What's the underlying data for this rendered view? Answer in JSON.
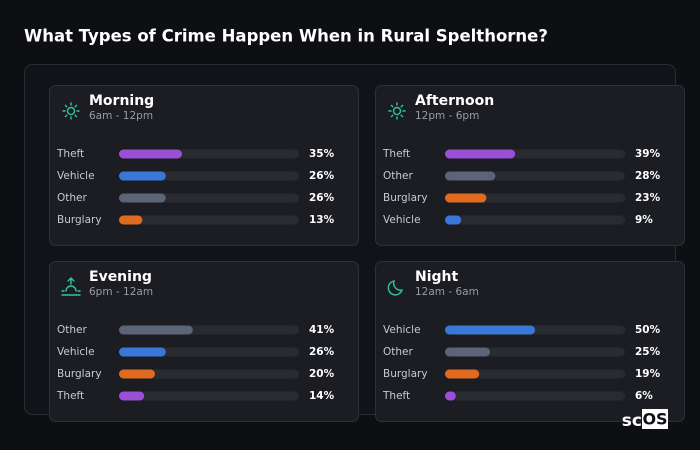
{
  "title": "What Types of Crime Happen When in Rural Spelthorne?",
  "logo": [
    "sc",
    "OS"
  ],
  "chart_data": [
    {
      "type": "bar",
      "orientation": "horizontal",
      "title": "Morning",
      "subtitle": "6am - 12pm",
      "categories": [
        "Theft",
        "Vehicle",
        "Other",
        "Burglary"
      ],
      "values": [
        35,
        26,
        26,
        13
      ],
      "value_labels": [
        "35%",
        "26%",
        "26%",
        "13%"
      ],
      "colors": [
        "#9b4fd6",
        "#3a78d8",
        "#5c6478",
        "#e06a1f"
      ],
      "xlim": [
        0,
        100
      ]
    },
    {
      "type": "bar",
      "orientation": "horizontal",
      "title": "Afternoon",
      "subtitle": "12pm - 6pm",
      "categories": [
        "Theft",
        "Other",
        "Burglary",
        "Vehicle"
      ],
      "values": [
        39,
        28,
        23,
        9
      ],
      "value_labels": [
        "39%",
        "28%",
        "23%",
        "9%"
      ],
      "colors": [
        "#9b4fd6",
        "#5c6478",
        "#e06a1f",
        "#3a78d8"
      ],
      "xlim": [
        0,
        100
      ]
    },
    {
      "type": "bar",
      "orientation": "horizontal",
      "title": "Evening",
      "subtitle": "6pm - 12am",
      "categories": [
        "Other",
        "Vehicle",
        "Burglary",
        "Theft"
      ],
      "values": [
        41,
        26,
        20,
        14
      ],
      "value_labels": [
        "41%",
        "26%",
        "20%",
        "14%"
      ],
      "colors": [
        "#5c6478",
        "#3a78d8",
        "#e06a1f",
        "#9b4fd6"
      ],
      "xlim": [
        0,
        100
      ]
    },
    {
      "type": "bar",
      "orientation": "horizontal",
      "title": "Night",
      "subtitle": "12am - 6am",
      "categories": [
        "Vehicle",
        "Other",
        "Burglary",
        "Theft"
      ],
      "values": [
        50,
        25,
        19,
        6
      ],
      "value_labels": [
        "50%",
        "25%",
        "19%",
        "6%"
      ],
      "colors": [
        "#3a78d8",
        "#5c6478",
        "#e06a1f",
        "#9b4fd6"
      ],
      "xlim": [
        0,
        100
      ]
    }
  ]
}
